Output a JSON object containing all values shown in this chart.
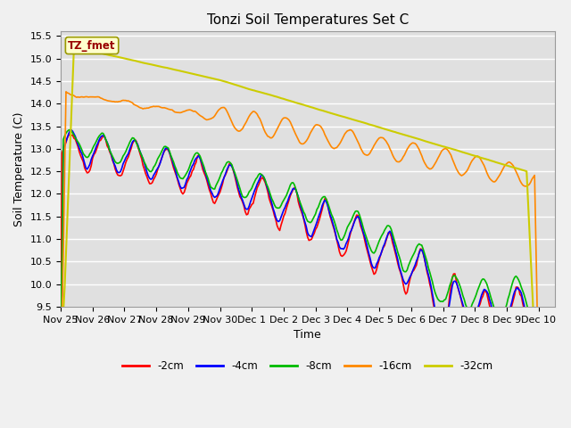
{
  "title": "Tonzi Soil Temperatures Set C",
  "xlabel": "Time",
  "ylabel": "Soil Temperature (C)",
  "ylim": [
    9.5,
    15.6
  ],
  "tick_labels": [
    "Nov 25",
    "Nov 26",
    "Nov 27",
    "Nov 28",
    "Nov 29",
    "Nov 30",
    "Dec 1",
    "Dec 2",
    "Dec 3",
    "Dec 4",
    "Dec 5",
    "Dec 6",
    "Dec 7",
    "Dec 8",
    "Dec 9",
    "Dec 10"
  ],
  "legend_label": "TZ_fmet",
  "legend_entries": [
    "-2cm",
    "-4cm",
    "-8cm",
    "-16cm",
    "-32cm"
  ],
  "line_colors": [
    "#ff0000",
    "#0000ff",
    "#00bb00",
    "#ff8800",
    "#cccc00"
  ],
  "title_fontsize": 11,
  "axis_fontsize": 9,
  "tick_fontsize": 8
}
